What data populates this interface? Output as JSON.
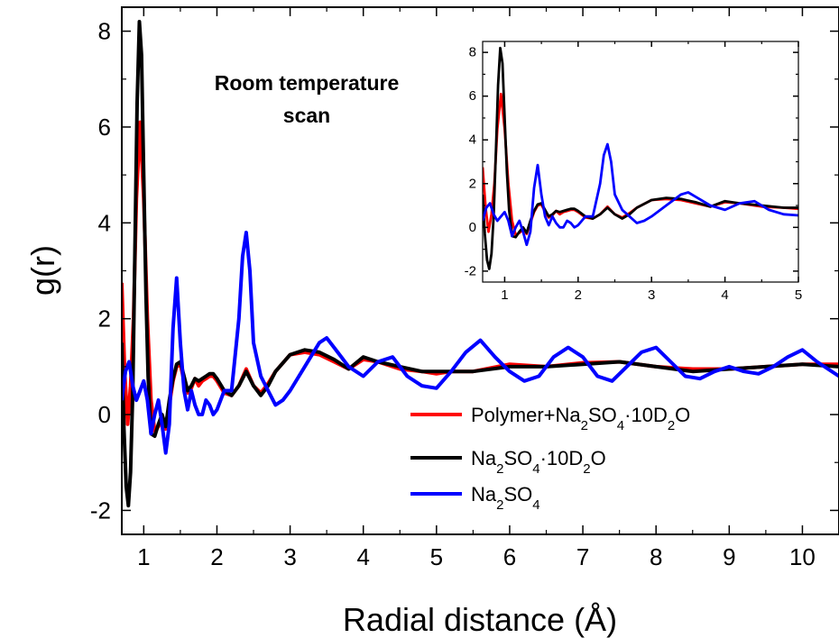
{
  "chart_data": {
    "type": "line",
    "xlabel": "Radial distance (Å)",
    "ylabel": "g(r)",
    "xlim": [
      0.7,
      10.5
    ],
    "ylim": [
      -2.5,
      8.5
    ],
    "xticks": [
      "1",
      "2",
      "3",
      "4",
      "5",
      "6",
      "7",
      "8",
      "9",
      "10"
    ],
    "yticks": [
      "-2",
      "0",
      "2",
      "4",
      "6",
      "8"
    ],
    "annotation_line1": "Room temperature",
    "annotation_line2": "scan",
    "legend_position": "bottom-right",
    "legend": [
      {
        "base": "Polymer+Na",
        "sub1": "2",
        "mid1": "SO",
        "sub2": "4",
        "mid2": "·10D",
        "sub3": "2",
        "end": "O",
        "color": "#ff0000"
      },
      {
        "base": "Na",
        "sub1": "2",
        "mid1": "SO",
        "sub2": "4",
        "mid2": "·10D",
        "sub3": "2",
        "end": "O",
        "color": "#000000"
      },
      {
        "base": "Na",
        "sub1": "2",
        "mid1": "SO",
        "sub2": "4",
        "mid2": "",
        "sub3": "",
        "end": "",
        "color": "#0000ff"
      }
    ],
    "series": [
      {
        "color": "#ff0000",
        "x": [
          0.7,
          0.74,
          0.78,
          0.82,
          0.86,
          0.9,
          0.95,
          1.0,
          1.05,
          1.1,
          1.15,
          1.2,
          1.25,
          1.3,
          1.35,
          1.4,
          1.45,
          1.5,
          1.55,
          1.6,
          1.65,
          1.7,
          1.75,
          1.8,
          1.85,
          1.9,
          1.95,
          2.0,
          2.1,
          2.2,
          2.3,
          2.4,
          2.5,
          2.6,
          2.7,
          2.8,
          3.0,
          3.2,
          3.4,
          3.6,
          3.8,
          4.0,
          4.2,
          4.5,
          4.8,
          5.0,
          5.2,
          5.5,
          6.0,
          6.5,
          7.0,
          7.5,
          8.0,
          8.5,
          9.0,
          9.5,
          10.0,
          10.5
        ],
        "y": [
          2.75,
          0.9,
          -0.2,
          0.6,
          2.0,
          4.5,
          6.1,
          4.5,
          2.0,
          0.3,
          -0.35,
          -0.25,
          -0.1,
          -0.3,
          0.2,
          0.7,
          1.0,
          1.05,
          0.7,
          0.45,
          0.55,
          0.75,
          0.6,
          0.7,
          0.75,
          0.8,
          0.8,
          0.7,
          0.45,
          0.4,
          0.6,
          0.95,
          0.6,
          0.45,
          0.65,
          0.9,
          1.25,
          1.3,
          1.25,
          1.1,
          0.95,
          1.15,
          1.1,
          0.95,
          0.9,
          0.85,
          0.9,
          0.9,
          1.05,
          1.0,
          1.08,
          1.1,
          1.0,
          0.95,
          0.95,
          1.0,
          1.05,
          1.05
        ]
      },
      {
        "color": "#000000",
        "x": [
          0.7,
          0.73,
          0.76,
          0.79,
          0.82,
          0.85,
          0.88,
          0.91,
          0.94,
          0.97,
          1.0,
          1.03,
          1.06,
          1.1,
          1.15,
          1.2,
          1.25,
          1.3,
          1.35,
          1.4,
          1.45,
          1.5,
          1.55,
          1.6,
          1.65,
          1.7,
          1.75,
          1.8,
          1.85,
          1.9,
          1.95,
          2.0,
          2.1,
          2.2,
          2.3,
          2.4,
          2.5,
          2.6,
          2.7,
          2.8,
          3.0,
          3.2,
          3.4,
          3.6,
          3.8,
          4.0,
          4.2,
          4.5,
          4.8,
          5.0,
          5.2,
          5.5,
          6.0,
          6.5,
          7.0,
          7.5,
          8.0,
          8.5,
          9.0,
          9.5,
          10.0,
          10.5
        ],
        "y": [
          1.5,
          -0.3,
          -1.5,
          -1.9,
          -1.2,
          0.5,
          3.5,
          6.5,
          8.2,
          7.5,
          5.0,
          2.5,
          0.8,
          -0.4,
          -0.45,
          -0.2,
          0.0,
          -0.25,
          0.3,
          0.75,
          1.05,
          1.1,
          0.8,
          0.5,
          0.6,
          0.75,
          0.7,
          0.75,
          0.8,
          0.85,
          0.85,
          0.75,
          0.5,
          0.4,
          0.6,
          0.9,
          0.6,
          0.4,
          0.6,
          0.9,
          1.25,
          1.35,
          1.3,
          1.15,
          0.95,
          1.2,
          1.1,
          1.0,
          0.9,
          0.9,
          0.9,
          0.9,
          1.0,
          1.0,
          1.05,
          1.1,
          1.0,
          0.9,
          0.95,
          1.0,
          1.05,
          1.0
        ]
      },
      {
        "color": "#0000ff",
        "x": [
          0.7,
          0.75,
          0.8,
          0.85,
          0.9,
          0.95,
          1.0,
          1.05,
          1.1,
          1.15,
          1.2,
          1.25,
          1.3,
          1.35,
          1.4,
          1.45,
          1.5,
          1.55,
          1.6,
          1.65,
          1.7,
          1.75,
          1.8,
          1.85,
          1.9,
          1.95,
          2.0,
          2.1,
          2.2,
          2.3,
          2.35,
          2.4,
          2.45,
          2.5,
          2.6,
          2.7,
          2.8,
          2.9,
          3.0,
          3.2,
          3.4,
          3.5,
          3.6,
          3.8,
          4.0,
          4.2,
          4.4,
          4.6,
          4.8,
          5.0,
          5.2,
          5.4,
          5.6,
          5.8,
          6.0,
          6.2,
          6.4,
          6.6,
          6.8,
          7.0,
          7.2,
          7.4,
          7.6,
          7.8,
          8.0,
          8.2,
          8.4,
          8.6,
          8.8,
          9.0,
          9.2,
          9.4,
          9.6,
          9.8,
          10.0,
          10.2,
          10.5
        ],
        "y": [
          0.3,
          0.9,
          1.1,
          0.6,
          0.3,
          0.5,
          0.7,
          0.3,
          -0.4,
          0.0,
          0.3,
          -0.2,
          -0.8,
          -0.2,
          1.8,
          2.85,
          1.5,
          0.5,
          0.1,
          0.5,
          0.2,
          0.0,
          0.0,
          0.3,
          0.2,
          0.0,
          0.1,
          0.5,
          0.5,
          2.0,
          3.3,
          3.8,
          3.0,
          1.5,
          0.8,
          0.5,
          0.2,
          0.3,
          0.5,
          1.0,
          1.5,
          1.6,
          1.4,
          1.0,
          0.8,
          1.1,
          1.2,
          0.8,
          0.6,
          0.55,
          0.9,
          1.3,
          1.55,
          1.2,
          0.9,
          0.7,
          0.8,
          1.2,
          1.4,
          1.2,
          0.8,
          0.7,
          1.0,
          1.3,
          1.4,
          1.1,
          0.8,
          0.75,
          0.9,
          1.0,
          0.9,
          0.85,
          1.0,
          1.2,
          1.35,
          1.1,
          0.8
        ]
      }
    ],
    "inset": {
      "xlim": [
        0.7,
        5.0
      ],
      "ylim": [
        -2.5,
        8.5
      ],
      "xticks": [
        "1",
        "2",
        "3",
        "4",
        "5"
      ],
      "yticks": [
        "-2",
        "0",
        "2",
        "4",
        "6",
        "8"
      ]
    }
  }
}
